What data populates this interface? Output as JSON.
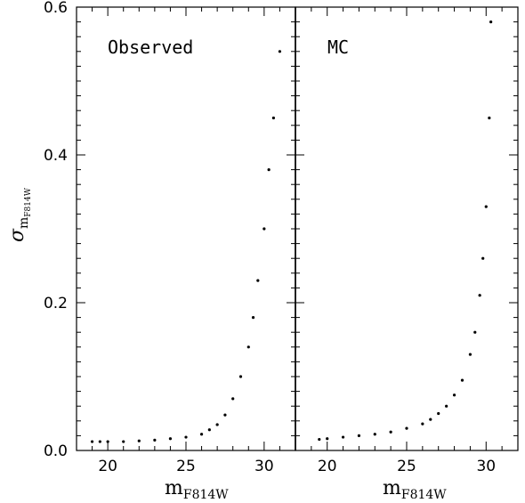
{
  "chart_data": [
    {
      "type": "scatter",
      "panel_label": "Observed",
      "xlabel_main": "m",
      "xlabel_sub": "F814W",
      "ylabel_main": "σ",
      "ylabel_sub_m": "m",
      "ylabel_sub_sub": "F814W",
      "xlim": [
        18,
        32
      ],
      "ylim": [
        0,
        0.6
      ],
      "xticks": [
        20,
        25,
        30
      ],
      "yticks": [
        0.0,
        0.2,
        0.4,
        0.6
      ],
      "ytick_labels": [
        "0.0",
        "0.2",
        "0.4",
        "0.6"
      ],
      "grid": false,
      "series": [
        {
          "x": [
            19.0,
            19.5,
            20.0,
            21.0,
            22.0,
            23.0,
            24.0,
            25.0,
            26.0,
            26.5,
            27.0,
            27.5,
            28.0,
            28.5,
            29.0,
            29.3,
            29.6,
            30.0,
            30.3,
            30.6,
            31.0
          ],
          "y": [
            0.012,
            0.012,
            0.012,
            0.012,
            0.013,
            0.014,
            0.016,
            0.018,
            0.022,
            0.028,
            0.035,
            0.048,
            0.07,
            0.1,
            0.14,
            0.18,
            0.23,
            0.3,
            0.38,
            0.45,
            0.54
          ]
        }
      ]
    },
    {
      "type": "scatter",
      "panel_label": "MC",
      "xlabel_main": "m",
      "xlabel_sub": "F814W",
      "xlim": [
        18,
        32
      ],
      "ylim": [
        0,
        0.6
      ],
      "xticks": [
        20,
        25,
        30
      ],
      "grid": false,
      "series": [
        {
          "x": [
            19.5,
            20.0,
            21.0,
            22.0,
            23.0,
            24.0,
            25.0,
            26.0,
            26.5,
            27.0,
            27.5,
            28.0,
            28.5,
            29.0,
            29.3,
            29.6,
            29.8,
            30.0,
            30.2,
            30.3
          ],
          "y": [
            0.015,
            0.016,
            0.018,
            0.02,
            0.022,
            0.025,
            0.03,
            0.036,
            0.042,
            0.05,
            0.06,
            0.075,
            0.095,
            0.13,
            0.16,
            0.21,
            0.26,
            0.33,
            0.45,
            0.58
          ]
        }
      ]
    }
  ]
}
